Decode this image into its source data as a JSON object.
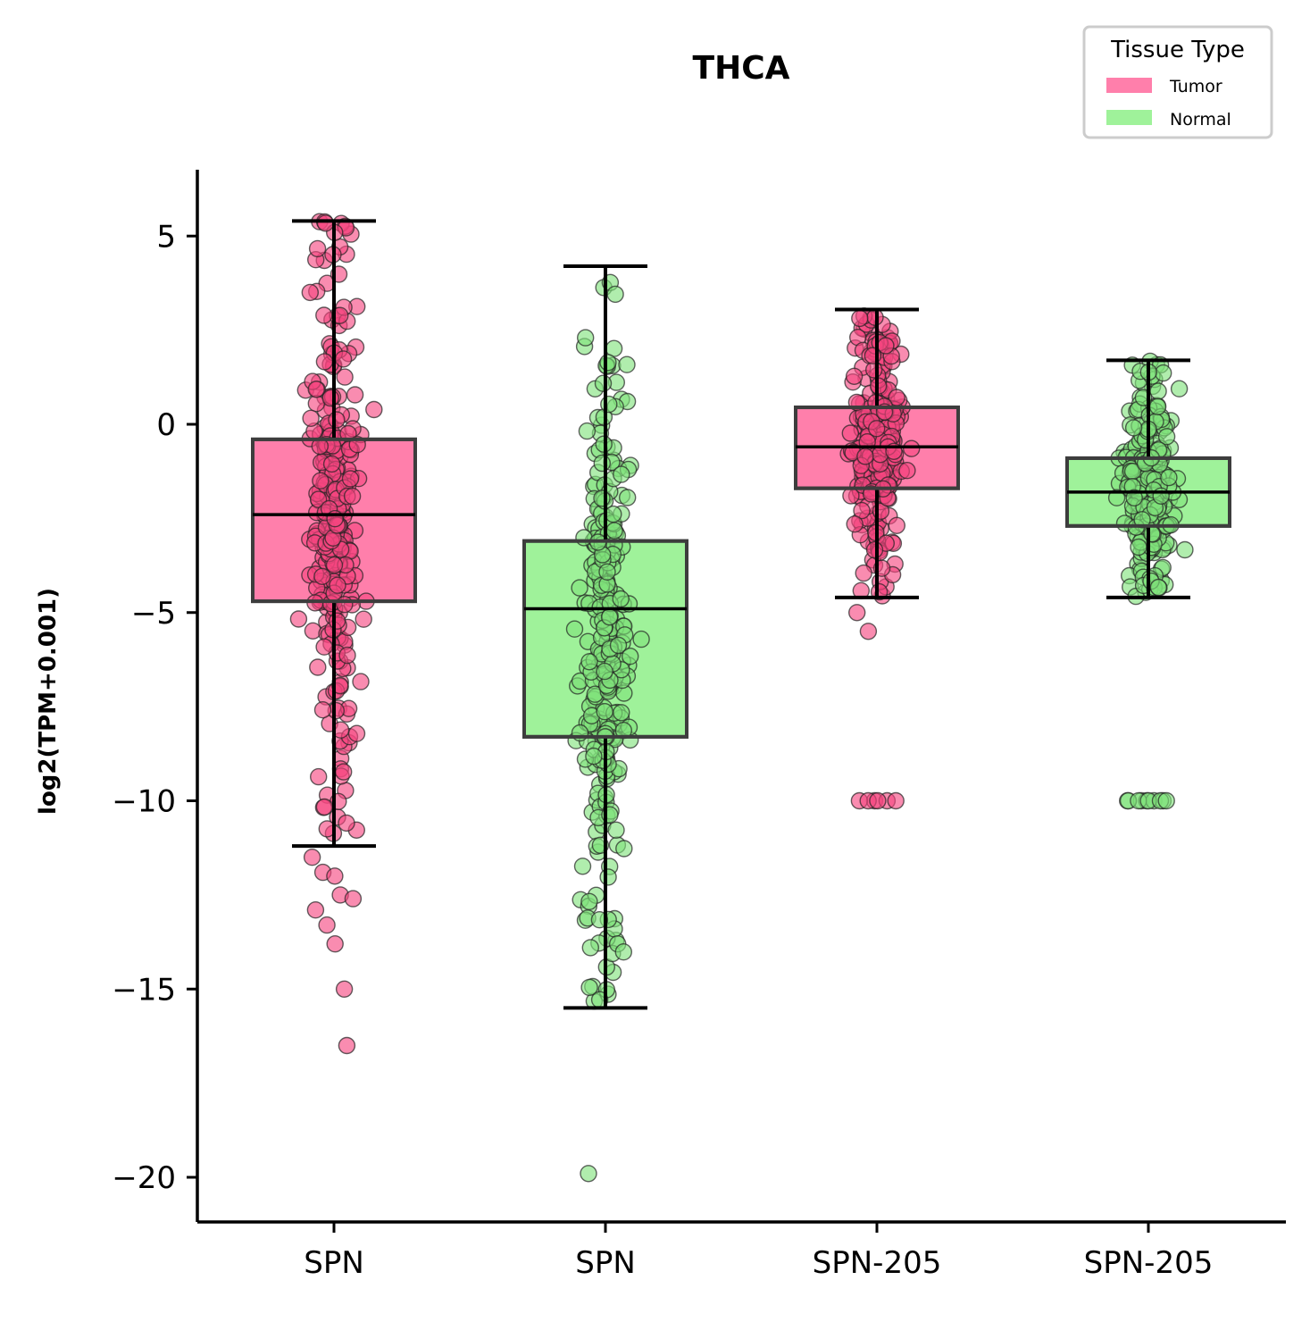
{
  "chart_data": {
    "type": "box",
    "title": "THCA",
    "xlabel": "",
    "ylabel": "log2(TPM+0.001)",
    "ylim": [
      -21.2,
      6.7
    ],
    "yticks": [
      5,
      0,
      -5,
      -10,
      -15,
      -20
    ],
    "ytick_labels": [
      "5",
      "0",
      "−5",
      "−10",
      "−15",
      "−20"
    ],
    "categories": [
      "SPN",
      "SPN",
      "SPN-205",
      "SPN-205"
    ],
    "grid": false,
    "legend": {
      "title": "Tissue Type",
      "position": "top-right",
      "entries": [
        {
          "label": "Tumor",
          "color": "#ff7fab"
        },
        {
          "label": "Normal",
          "color": "#9ff29a"
        }
      ]
    },
    "boxes": [
      {
        "label": "SPN",
        "group": "Tumor",
        "whisker_low": -11.2,
        "q1": -4.7,
        "median": -2.4,
        "q3": -0.4,
        "whisker_high": 5.4
      },
      {
        "label": "SPN",
        "group": "Normal",
        "whisker_low": -15.5,
        "q1": -8.3,
        "median": -4.9,
        "q3": -3.1,
        "whisker_high": 4.2
      },
      {
        "label": "SPN-205",
        "group": "Tumor",
        "whisker_low": -4.6,
        "q1": -1.7,
        "median": -0.6,
        "q3": 0.45,
        "whisker_high": 3.05
      },
      {
        "label": "SPN-205",
        "group": "Normal",
        "whisker_low": -4.6,
        "q1": -2.7,
        "median": -1.8,
        "q3": -0.9,
        "whisker_high": 1.7
      }
    ],
    "outliers": [
      {
        "box": 0,
        "values": [
          -11.5,
          -11.9,
          -12.0,
          -12.5,
          -12.6,
          -12.9,
          -13.3,
          -13.8,
          -15.0,
          -16.5
        ]
      },
      {
        "box": 1,
        "values": [
          -19.9
        ]
      },
      {
        "box": 2,
        "values": [
          -5.0,
          -5.5,
          -10.0,
          -10.0,
          -10.0,
          -10.0,
          -10.0,
          -10.0
        ]
      },
      {
        "box": 3,
        "values": [
          -10.0,
          -10.0,
          -10.0,
          -10.0,
          -10.0,
          -10.0,
          -10.0,
          -10.0,
          -10.0,
          -10.0
        ]
      }
    ]
  },
  "colors": {
    "tumor": "#ff7fab",
    "tumor_point": "#f5457f",
    "normal": "#9ff29a",
    "normal_point": "#7fe27a",
    "axis": "#000000"
  }
}
